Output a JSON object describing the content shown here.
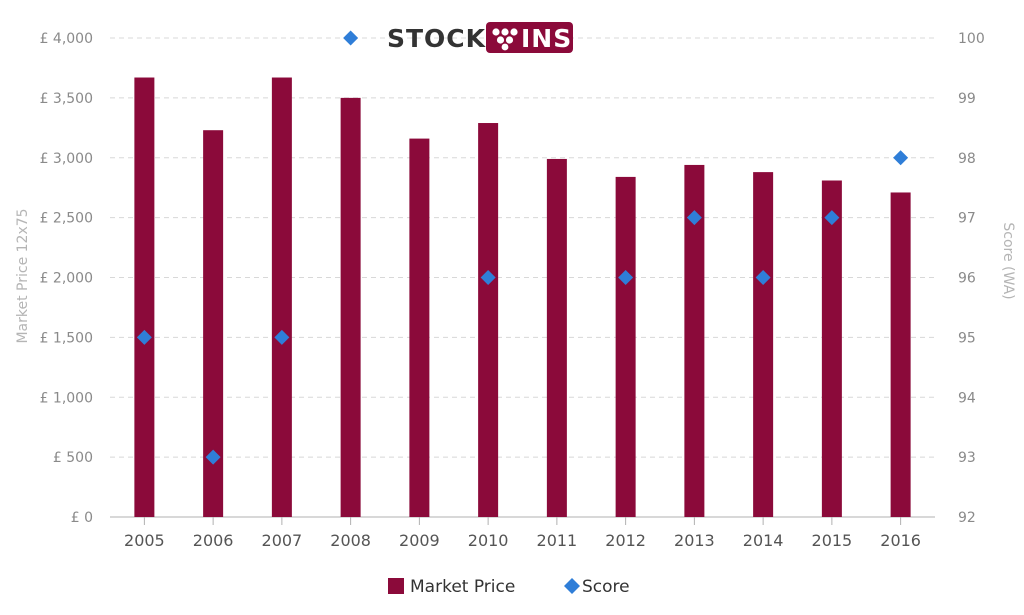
{
  "chart_data": {
    "type": "bar",
    "categories": [
      "2005",
      "2006",
      "2007",
      "2008",
      "2009",
      "2010",
      "2011",
      "2012",
      "2013",
      "2014",
      "2015",
      "2016"
    ],
    "series": [
      {
        "name": "Market Price",
        "kind": "bar",
        "axis": "left",
        "values": [
          3670,
          3230,
          3670,
          3500,
          3160,
          3290,
          2990,
          2840,
          2940,
          2880,
          2810,
          2710
        ]
      },
      {
        "name": "Score",
        "kind": "scatter",
        "axis": "right",
        "marker": "diamond",
        "values": [
          95,
          93,
          95,
          100,
          null,
          96,
          null,
          96,
          97,
          96,
          97,
          98
        ]
      }
    ],
    "ylabel": "Market Price 12x75",
    "y2label": "Score (WA)",
    "ylim": [
      0,
      4000
    ],
    "y2lim": [
      92,
      100
    ],
    "yticks": [
      "£ 0",
      "£ 500",
      "£ 1,000",
      "£ 1,500",
      "£ 2,000",
      "£ 2,500",
      "£ 3,000",
      "£ 3,500",
      "£ 4,000"
    ],
    "y2ticks": [
      "92",
      "93",
      "94",
      "95",
      "96",
      "97",
      "98",
      "99",
      "100"
    ],
    "grid": "horizontal dashed",
    "legend": "bottom-center",
    "colors": {
      "bar": "#8b0a3a",
      "score": "#2f7ed8",
      "grid": "#d8d8d8"
    }
  },
  "logo": {
    "text_left": "STOCK",
    "text_right": "INS",
    "bg": "#8b0a3a"
  }
}
